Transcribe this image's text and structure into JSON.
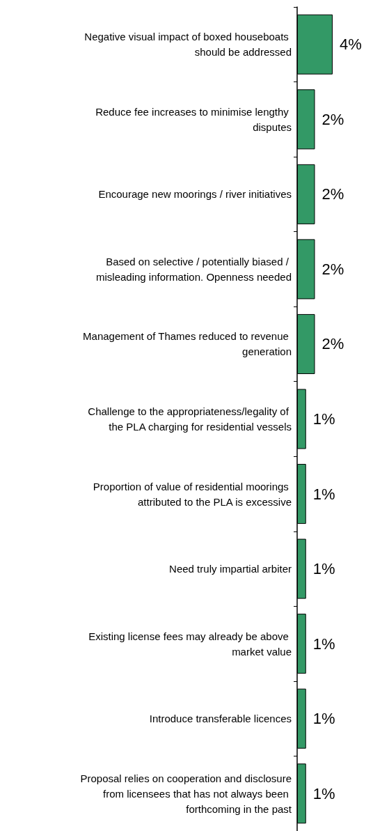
{
  "chart_data": {
    "type": "bar",
    "orientation": "horizontal",
    "categories": [
      "Negative visual impact of boxed houseboats should be addressed",
      "Reduce fee increases to minimise lengthy disputes",
      "Encourage new moorings / river initiatives",
      "Based on selective / potentially biased / misleading information. Openness needed",
      "Management of Thames reduced to revenue generation",
      "Challenge to the appropriateness/legality of the PLA charging for residential vessels",
      "Proportion of value of residential moorings attributed to the PLA is excessive",
      "Need truly impartial arbiter",
      "Existing license fees may already be above market value",
      "Introduce transferable licences",
      "Proposal relies on cooperation and disclosure from licensees that has not always been forthcoming in the past"
    ],
    "values": [
      4,
      2,
      2,
      2,
      2,
      1,
      1,
      1,
      1,
      1,
      1
    ],
    "value_labels": [
      "4%",
      "2%",
      "2%",
      "2%",
      "2%",
      "1%",
      "1%",
      "1%",
      "1%",
      "1%",
      "1%"
    ],
    "color": "#339966"
  }
}
